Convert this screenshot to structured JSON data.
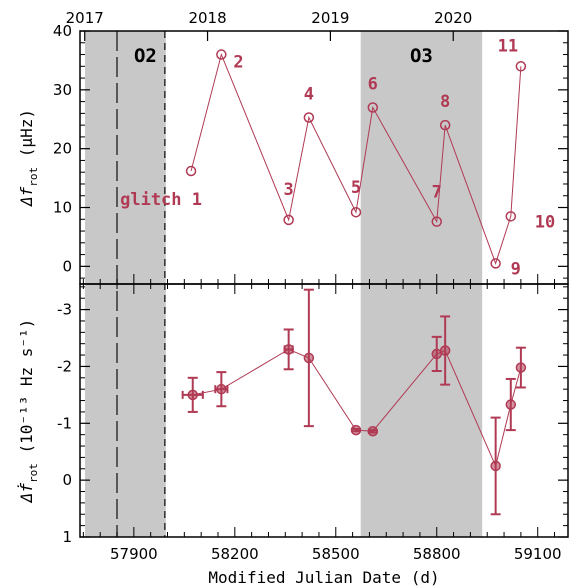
{
  "colors": {
    "series": "#b03a54",
    "shade": "#c8c8c8",
    "axis": "#000000"
  },
  "chart_data": [
    {
      "type": "line",
      "panel": "top",
      "ylabel_main": "Δf",
      "ylabel_sub": "rot",
      "ylabel_unit": "(μHz)",
      "ylim": [
        -3,
        40
      ],
      "yticks": [
        0,
        10,
        20,
        30,
        40
      ],
      "x": [
        58070,
        58160,
        58360,
        58420,
        58560,
        58610,
        58800,
        58825,
        58975,
        59020,
        59050
      ],
      "values": [
        16.2,
        36.0,
        7.9,
        25.3,
        9.2,
        27.0,
        7.6,
        24.0,
        0.5,
        8.5,
        34.0
      ],
      "point_labels": [
        "glitch  1",
        "2",
        "3",
        "4",
        "5",
        "6",
        "7",
        "8",
        "9",
        "10",
        "11"
      ],
      "top_axis": {
        "labels": [
          "2017",
          "2018",
          "2019",
          "2020"
        ],
        "mjd": [
          57754,
          58119,
          58484,
          58849
        ]
      },
      "shaded_regions": [
        {
          "label": "O2",
          "x0": 57755,
          "x1": 57995
        },
        {
          "label": "O3",
          "x0": 58574,
          "x1": 58935
        }
      ],
      "vertical_lines": [
        {
          "x": 57850,
          "style": "long-dash"
        },
        {
          "x": 57992,
          "style": "short-dash"
        }
      ]
    },
    {
      "type": "scatter",
      "panel": "bottom",
      "ylabel_main": "Δḟ",
      "ylabel_sub": "rot",
      "ylabel_unit": "(10⁻¹³ Hz s⁻¹)",
      "ylim": [
        1,
        -3.45
      ],
      "yticks": [
        1,
        0,
        -1,
        -2,
        -3
      ],
      "ytick_labels": [
        "1",
        "0",
        "-1",
        "-2",
        "-3"
      ],
      "xlabel": "Modified Julian Date (d)",
      "xlim": [
        57740,
        59190
      ],
      "xticks": [
        57900,
        58200,
        58500,
        58800,
        59100
      ],
      "x": [
        58075,
        58160,
        58360,
        58420,
        58560,
        58610,
        58800,
        58825,
        58975,
        59020,
        59050
      ],
      "values": [
        -1.5,
        -1.6,
        -2.3,
        -2.15,
        -0.88,
        -0.86,
        -2.22,
        -2.28,
        -0.25,
        -1.33,
        -1.98
      ],
      "yerr": [
        0.3,
        0.3,
        0.35,
        1.2,
        0.02,
        0.02,
        0.3,
        0.6,
        0.85,
        0.45,
        0.35
      ],
      "xerr": [
        30,
        18,
        12,
        0,
        0,
        0,
        0,
        0,
        0,
        0,
        0
      ]
    }
  ]
}
